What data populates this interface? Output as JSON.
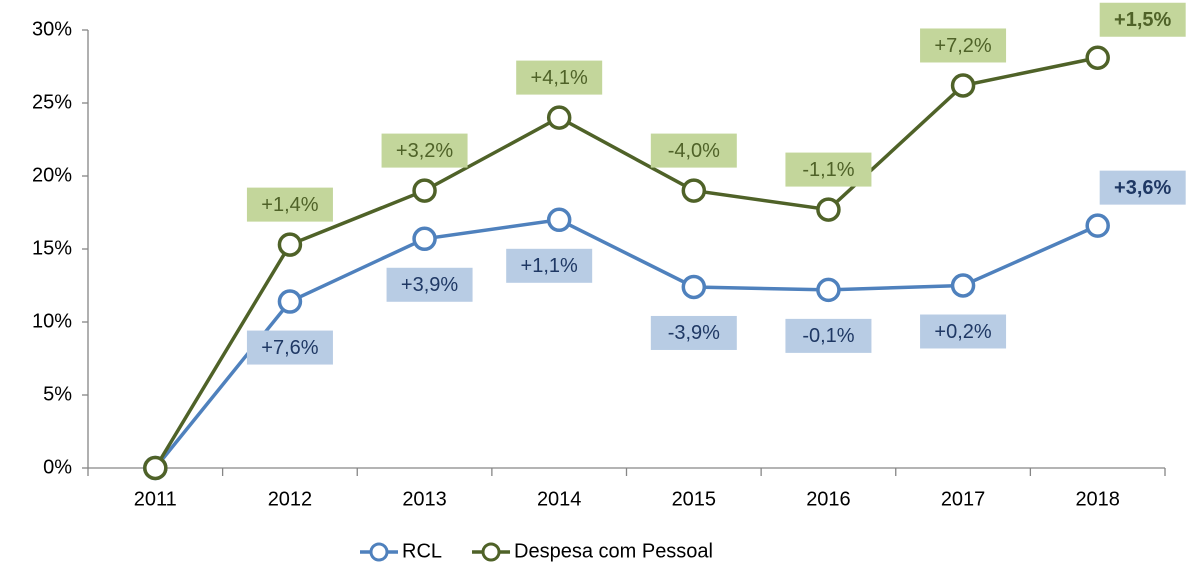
{
  "chart_data": {
    "type": "line",
    "categories": [
      "2011",
      "2012",
      "2013",
      "2014",
      "2015",
      "2016",
      "2017",
      "2018"
    ],
    "series": [
      {
        "name": "RCL",
        "color": "#4f81bd",
        "label_fill": "#b8cce4",
        "label_color": "#1f3864",
        "values": [
          0,
          11.4,
          15.7,
          17.0,
          12.4,
          12.2,
          12.5,
          16.6
        ],
        "annotations": [
          null,
          "+7,6%",
          "+3,9%",
          "+1,1%",
          "-3,9%",
          "-0,1%",
          "+0,2%",
          "+3,6%"
        ]
      },
      {
        "name": "Despesa com Pessoal",
        "color": "#4f6228",
        "label_fill": "#c3d69b",
        "label_color": "#4f6228",
        "values": [
          0,
          15.3,
          19.0,
          24.0,
          19.0,
          17.7,
          26.2,
          28.1
        ],
        "annotations": [
          null,
          "+1,4%",
          "+3,2%",
          "+4,1%",
          "-4,0%",
          "-1,1%",
          "+7,2%",
          "+1,5%"
        ]
      }
    ],
    "ylim": [
      0,
      30
    ],
    "yticks": [
      {
        "value": 0,
        "label": "0%"
      },
      {
        "value": 5,
        "label": "5%"
      },
      {
        "value": 10,
        "label": "10%"
      },
      {
        "value": 15,
        "label": "15%"
      },
      {
        "value": 20,
        "label": "20%"
      },
      {
        "value": 25,
        "label": "25%"
      },
      {
        "value": 30,
        "label": "30%"
      }
    ],
    "grid": false,
    "legend": "bottom"
  }
}
